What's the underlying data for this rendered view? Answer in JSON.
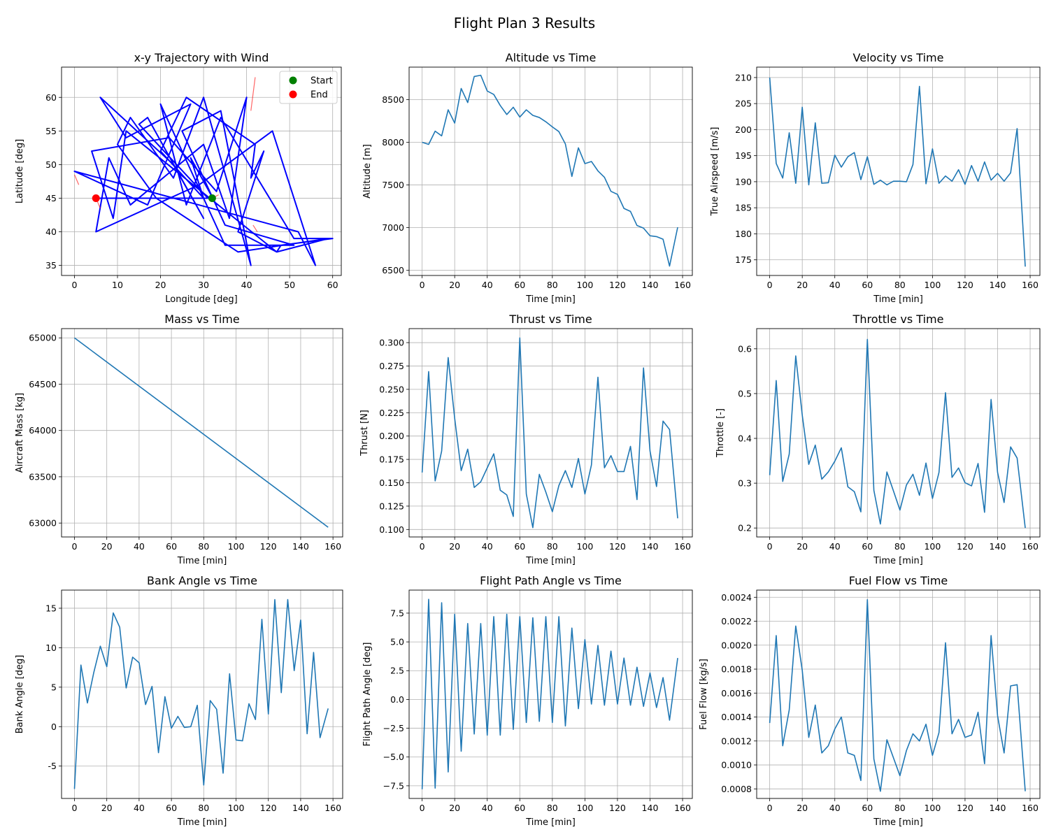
{
  "figure": {
    "title": "Flight Plan 3 Results"
  },
  "colors": {
    "series": "#1f77b4",
    "trajectory": "#0000ff",
    "wind": "#ff0000",
    "start": "#008000",
    "end": "#ff0000",
    "grid": "#b0b0b0"
  },
  "chart_data": [
    {
      "id": "trajectory",
      "type": "line",
      "title": "x-y Trajectory with Wind",
      "xlabel": "Longitude [deg]",
      "ylabel": "Latitude [deg]",
      "xlim": [
        -3,
        62
      ],
      "ylim": [
        33.5,
        64.5
      ],
      "xticks": [
        0,
        10,
        20,
        30,
        40,
        50,
        60
      ],
      "yticks": [
        35,
        40,
        45,
        50,
        55,
        60
      ],
      "grid": true,
      "legend": {
        "placement": "top-right",
        "entries": [
          {
            "label": "Start",
            "color": "#008000"
          },
          {
            "label": "End",
            "color": "#ff0000"
          }
        ]
      },
      "x": [
        32,
        33,
        27,
        30,
        20,
        26,
        42,
        41,
        44,
        38,
        47,
        48,
        60,
        51,
        34,
        26,
        20,
        35,
        51,
        35,
        25,
        34,
        41,
        30,
        23,
        13,
        10,
        19,
        38,
        59,
        47,
        12,
        9,
        4,
        22,
        33,
        40,
        36,
        30,
        13,
        8,
        5,
        29,
        46,
        56,
        52,
        0,
        17,
        27,
        12,
        6,
        23,
        30,
        17,
        15,
        31,
        5
      ],
      "y": [
        45,
        44,
        51,
        45,
        52,
        60,
        53,
        48,
        52,
        40,
        37,
        38,
        39,
        39,
        57,
        44,
        59,
        38,
        38,
        41,
        55,
        58,
        35,
        60,
        48,
        57,
        53,
        45,
        37,
        39,
        37,
        55,
        42,
        52,
        54,
        46,
        60,
        42,
        53,
        44,
        51,
        40,
        47,
        55,
        35,
        40,
        49,
        44,
        59,
        54,
        60,
        50,
        42,
        57,
        56,
        45,
        45
      ],
      "wind": [
        [
          [
            0,
            48.5
          ],
          [
            1,
            47
          ]
        ],
        [
          [
            5,
            45
          ],
          [
            6,
            43.5
          ]
        ],
        [
          [
            32,
            45
          ],
          [
            33.5,
            45.5
          ]
        ],
        [
          [
            41,
            58
          ],
          [
            42,
            63
          ]
        ],
        [
          [
            41.5,
            41
          ],
          [
            42.5,
            40
          ]
        ]
      ],
      "start": {
        "x": 32,
        "y": 45
      },
      "end": {
        "x": 5,
        "y": 45
      }
    },
    {
      "id": "altitude",
      "type": "line",
      "title": "Altitude vs Time",
      "xlabel": "Time [min]",
      "ylabel": "Altitude [m]",
      "xlim": [
        -8,
        166
      ],
      "ylim": [
        6440,
        8880
      ],
      "xticks": [
        0,
        20,
        40,
        60,
        80,
        100,
        120,
        140,
        160
      ],
      "yticks": [
        6500,
        7000,
        7500,
        8000,
        8500
      ],
      "grid": true,
      "x": [
        0,
        4,
        8,
        12,
        16,
        20,
        24,
        28,
        32,
        36,
        40,
        44,
        48,
        52,
        56,
        60,
        64,
        68,
        72,
        76,
        80,
        84,
        88,
        92,
        96,
        100,
        104,
        108,
        112,
        116,
        120,
        124,
        128,
        132,
        136,
        140,
        144,
        148,
        152,
        157
      ],
      "y": [
        8000,
        7975,
        8130,
        8075,
        8380,
        8225,
        8630,
        8465,
        8770,
        8785,
        8600,
        8560,
        8430,
        8325,
        8410,
        8295,
        8380,
        8315,
        8290,
        8240,
        8180,
        8125,
        7980,
        7600,
        7935,
        7750,
        7775,
        7665,
        7590,
        7425,
        7390,
        7225,
        7190,
        7025,
        6995,
        6905,
        6895,
        6865,
        6550,
        7005
      ]
    },
    {
      "id": "velocity",
      "type": "line",
      "title": "Velocity vs Time",
      "xlabel": "Time [min]",
      "ylabel": "True Airspeed [m/s]",
      "xlim": [
        -8,
        166
      ],
      "ylim": [
        172,
        212
      ],
      "xticks": [
        0,
        20,
        40,
        60,
        80,
        100,
        120,
        140,
        160
      ],
      "yticks": [
        175,
        180,
        185,
        190,
        195,
        200,
        205,
        210
      ],
      "grid": true,
      "x": [
        0,
        4,
        8,
        12,
        16,
        20,
        24,
        28,
        32,
        36,
        40,
        44,
        48,
        52,
        56,
        60,
        64,
        68,
        72,
        76,
        80,
        84,
        88,
        92,
        96,
        100,
        104,
        108,
        112,
        116,
        120,
        124,
        128,
        132,
        136,
        140,
        144,
        148,
        152,
        157
      ],
      "y": [
        210,
        193.5,
        190.7,
        199.4,
        189.7,
        204.3,
        189.4,
        201.3,
        189.7,
        189.8,
        195.1,
        192.8,
        194.8,
        195.6,
        190.4,
        194.8,
        189.5,
        190.3,
        189.4,
        190.1,
        190.1,
        190.0,
        193.3,
        208.3,
        189.6,
        196.3,
        189.7,
        191.1,
        190.1,
        192.3,
        189.5,
        193.1,
        190.1,
        193.8,
        190.3,
        191.6,
        190.1,
        191.7,
        200.2,
        173.7
      ]
    },
    {
      "id": "mass",
      "type": "line",
      "title": "Mass vs Time",
      "xlabel": "Time [min]",
      "ylabel": "Aircraft Mass [kg]",
      "xlim": [
        -8,
        166
      ],
      "ylim": [
        62850,
        65100
      ],
      "xticks": [
        0,
        20,
        40,
        60,
        80,
        100,
        120,
        140,
        160
      ],
      "yticks": [
        63000,
        63500,
        64000,
        64500,
        65000
      ],
      "grid": true,
      "x": [
        0,
        157
      ],
      "y": [
        65000,
        62955
      ]
    },
    {
      "id": "thrust",
      "type": "line",
      "title": "Thrust vs Time",
      "xlabel": "Time [min]",
      "ylabel": "Thrust [N]",
      "xlim": [
        -8,
        166
      ],
      "ylim": [
        0.092,
        0.315
      ],
      "xticks": [
        0,
        20,
        40,
        60,
        80,
        100,
        120,
        140,
        160
      ],
      "yticks": [
        0.1,
        0.125,
        0.15,
        0.175,
        0.2,
        0.225,
        0.25,
        0.275,
        0.3
      ],
      "ytick_labels": [
        "0.100",
        "0.125",
        "0.150",
        "0.175",
        "0.200",
        "0.225",
        "0.250",
        "0.275",
        "0.300"
      ],
      "grid": true,
      "x": [
        0,
        4,
        8,
        12,
        16,
        20,
        24,
        28,
        32,
        36,
        40,
        44,
        48,
        52,
        56,
        60,
        64,
        68,
        72,
        76,
        80,
        84,
        88,
        92,
        96,
        100,
        104,
        108,
        112,
        116,
        120,
        124,
        128,
        132,
        136,
        140,
        144,
        148,
        152,
        157
      ],
      "y": [
        0.161,
        0.269,
        0.152,
        0.184,
        0.284,
        0.219,
        0.163,
        0.186,
        0.145,
        0.151,
        0.166,
        0.181,
        0.142,
        0.137,
        0.114,
        0.305,
        0.138,
        0.102,
        0.159,
        0.14,
        0.119,
        0.147,
        0.163,
        0.145,
        0.176,
        0.138,
        0.169,
        0.263,
        0.166,
        0.179,
        0.162,
        0.162,
        0.189,
        0.132,
        0.273,
        0.184,
        0.146,
        0.216,
        0.207,
        0.112
      ]
    },
    {
      "id": "throttle",
      "type": "line",
      "title": "Throttle vs Time",
      "xlabel": "Time [min]",
      "ylabel": "Throttle [-]",
      "xlim": [
        -8,
        166
      ],
      "ylim": [
        0.18,
        0.645
      ],
      "xticks": [
        0,
        20,
        40,
        60,
        80,
        100,
        120,
        140,
        160
      ],
      "yticks": [
        0.2,
        0.3,
        0.4,
        0.5,
        0.6
      ],
      "grid": true,
      "x": [
        0,
        4,
        8,
        12,
        16,
        20,
        24,
        28,
        32,
        36,
        40,
        44,
        48,
        52,
        56,
        60,
        64,
        68,
        72,
        76,
        80,
        84,
        88,
        92,
        96,
        100,
        104,
        108,
        112,
        116,
        120,
        124,
        128,
        132,
        136,
        140,
        144,
        148,
        152,
        157
      ],
      "y": [
        0.318,
        0.529,
        0.304,
        0.365,
        0.584,
        0.452,
        0.342,
        0.385,
        0.309,
        0.325,
        0.349,
        0.379,
        0.292,
        0.281,
        0.236,
        0.621,
        0.284,
        0.209,
        0.325,
        0.283,
        0.24,
        0.296,
        0.32,
        0.273,
        0.345,
        0.266,
        0.324,
        0.502,
        0.313,
        0.334,
        0.301,
        0.294,
        0.344,
        0.235,
        0.487,
        0.324,
        0.257,
        0.381,
        0.356,
        0.2
      ]
    },
    {
      "id": "bank",
      "type": "line",
      "title": "Bank Angle vs Time",
      "xlabel": "Time [min]",
      "ylabel": "Bank Angle [deg]",
      "xlim": [
        -8,
        166
      ],
      "ylim": [
        -9.1,
        17.3
      ],
      "xticks": [
        0,
        20,
        40,
        60,
        80,
        100,
        120,
        140,
        160
      ],
      "yticks": [
        -5,
        0,
        5,
        10,
        15
      ],
      "grid": true,
      "x": [
        0,
        4,
        8,
        12,
        16,
        20,
        24,
        28,
        32,
        36,
        40,
        44,
        48,
        52,
        56,
        60,
        64,
        68,
        72,
        76,
        80,
        84,
        88,
        92,
        96,
        100,
        104,
        108,
        112,
        116,
        120,
        124,
        128,
        132,
        136,
        140,
        144,
        148,
        152,
        157
      ],
      "y": [
        -7.9,
        7.8,
        3.0,
        6.9,
        10.2,
        7.6,
        14.4,
        12.6,
        4.9,
        8.8,
        8.1,
        2.8,
        5.1,
        -3.3,
        3.8,
        -0.2,
        1.3,
        -0.1,
        0.0,
        2.7,
        -7.4,
        3.3,
        2.2,
        -5.9,
        6.7,
        -1.7,
        -1.8,
        2.9,
        0.9,
        13.6,
        1.6,
        16.1,
        4.3,
        16.1,
        7.1,
        13.5,
        -0.9,
        9.4,
        -1.4,
        2.3
      ]
    },
    {
      "id": "fpa",
      "type": "line",
      "title": "Flight Path Angle vs Time",
      "xlabel": "Time [min]",
      "ylabel": "Flight Path Angle [deg]",
      "xlim": [
        -8,
        166
      ],
      "ylim": [
        -8.6,
        9.5
      ],
      "xticks": [
        0,
        20,
        40,
        60,
        80,
        100,
        120,
        140,
        160
      ],
      "yticks": [
        -7.5,
        -5.0,
        -2.5,
        0.0,
        2.5,
        5.0,
        7.5
      ],
      "ytick_labels": [
        "−7.5",
        "−5.0",
        "−2.5",
        "0.0",
        "2.5",
        "5.0",
        "7.5"
      ],
      "grid": true,
      "x": [
        0,
        4,
        8,
        12,
        16,
        20,
        24,
        28,
        32,
        36,
        40,
        44,
        48,
        52,
        56,
        60,
        64,
        68,
        72,
        76,
        80,
        84,
        88,
        92,
        96,
        100,
        104,
        108,
        112,
        116,
        120,
        124,
        128,
        132,
        136,
        140,
        144,
        148,
        152,
        157
      ],
      "y": [
        -7.8,
        8.7,
        -7.7,
        8.4,
        -6.3,
        7.4,
        -4.5,
        6.6,
        -3.0,
        6.6,
        -3.1,
        7.2,
        -3.1,
        7.4,
        -2.6,
        7.2,
        -2.0,
        7.1,
        -1.9,
        7.2,
        -2.0,
        7.2,
        -2.3,
        6.2,
        -0.8,
        5.2,
        -0.4,
        4.7,
        -0.5,
        4.2,
        -0.4,
        3.6,
        -0.5,
        2.8,
        -0.6,
        2.3,
        -0.7,
        1.9,
        -1.8,
        3.6
      ]
    },
    {
      "id": "fuelflow",
      "type": "line",
      "title": "Fuel Flow vs Time",
      "xlabel": "Time [min]",
      "ylabel": "Fuel Flow [kg/s]",
      "xlim": [
        -8,
        166
      ],
      "ylim": [
        0.00072,
        0.00246
      ],
      "xticks": [
        0,
        20,
        40,
        60,
        80,
        100,
        120,
        140,
        160
      ],
      "yticks": [
        0.0008,
        0.001,
        0.0012,
        0.0014,
        0.0016,
        0.0018,
        0.002,
        0.0022,
        0.0024
      ],
      "ytick_labels": [
        "0.0008",
        "0.0010",
        "0.0012",
        "0.0014",
        "0.0016",
        "0.0018",
        "0.0020",
        "0.0022",
        "0.0024"
      ],
      "grid": true,
      "x": [
        0,
        4,
        8,
        12,
        16,
        20,
        24,
        28,
        32,
        36,
        40,
        44,
        48,
        52,
        56,
        60,
        64,
        68,
        72,
        76,
        80,
        84,
        88,
        92,
        96,
        100,
        104,
        108,
        112,
        116,
        120,
        124,
        128,
        132,
        136,
        140,
        144,
        148,
        152,
        157
      ],
      "y": [
        0.00135,
        0.00208,
        0.00116,
        0.00146,
        0.00216,
        0.00179,
        0.00123,
        0.0015,
        0.0011,
        0.00116,
        0.0013,
        0.0014,
        0.0011,
        0.00108,
        0.00087,
        0.00238,
        0.00105,
        0.00078,
        0.00121,
        0.00106,
        0.00091,
        0.00112,
        0.00126,
        0.0012,
        0.00134,
        0.00108,
        0.00127,
        0.00202,
        0.00126,
        0.00138,
        0.00123,
        0.00125,
        0.00144,
        0.00101,
        0.00208,
        0.00141,
        0.0011,
        0.00166,
        0.00167,
        0.00078
      ]
    }
  ]
}
